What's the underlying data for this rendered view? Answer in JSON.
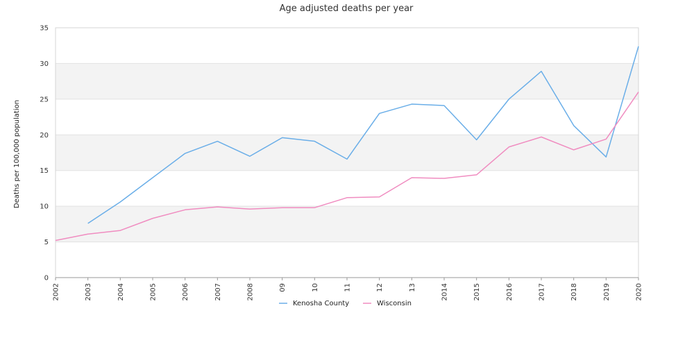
{
  "chart_data": {
    "type": "line",
    "title": "Age adjusted deaths per year",
    "xlabel": "",
    "ylabel": "Deaths per 100,000 population",
    "categories": [
      "2002",
      "2003",
      "2004",
      "2005",
      "2006",
      "2007",
      "2008",
      "09",
      "10",
      "11",
      "12",
      "13",
      "2014",
      "2015",
      "2016",
      "2017",
      "2018",
      "2019",
      "2020"
    ],
    "ylim": [
      0,
      35
    ],
    "yticks": [
      0,
      5,
      10,
      15,
      20,
      25,
      30,
      35
    ],
    "grid": "horizontal banded",
    "legend_position": "bottom",
    "series": [
      {
        "name": "Kenosha County",
        "color": "#6aaee8",
        "values": [
          null,
          7.6,
          10.6,
          14.0,
          17.4,
          19.1,
          17.0,
          19.6,
          19.1,
          16.6,
          23.0,
          24.3,
          24.1,
          19.3,
          25.0,
          28.9,
          21.3,
          16.9,
          32.4
        ]
      },
      {
        "name": "Wisconsin",
        "color": "#f08cc0",
        "values": [
          5.2,
          6.1,
          6.6,
          8.3,
          9.5,
          9.9,
          9.6,
          9.8,
          9.8,
          11.2,
          11.3,
          14.0,
          13.9,
          14.4,
          18.3,
          19.7,
          17.9,
          19.4,
          26.0
        ]
      }
    ]
  }
}
